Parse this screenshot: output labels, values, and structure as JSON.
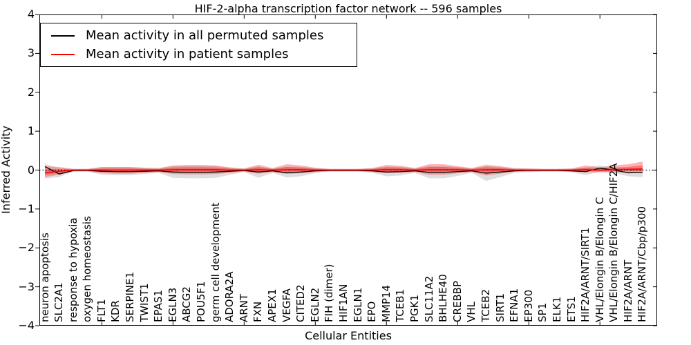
{
  "title": "HIF-2-alpha transcription factor network -- 596 samples",
  "legend": {
    "items": [
      {
        "label": "Mean activity in all permuted samples",
        "color": "#000000"
      },
      {
        "label": "Mean activity in patient samples",
        "color": "#ff0000"
      }
    ]
  },
  "axes": {
    "x_label": "Cellular Entities",
    "y_label": "Inferred Activity",
    "y_ticks": [
      "4",
      "3",
      "2",
      "1",
      "0",
      "−1",
      "−2",
      "−3",
      "−4"
    ],
    "y_tick_values": [
      4,
      3,
      2,
      1,
      0,
      -1,
      -2,
      -3,
      -4
    ],
    "y_min": -4,
    "y_max": 4,
    "x_major_tick_indices": [
      4,
      9,
      14,
      19,
      24,
      29,
      34,
      39
    ]
  },
  "colors": {
    "permuted_line": "#000000",
    "patient_line": "#ff0000",
    "permuted_band": "rgba(0,0,0,0.13)",
    "patient_band_outer": "rgba(255,40,40,0.35)",
    "patient_band_inner": "rgba(230,30,30,0.38)",
    "zero_line": "#000000"
  },
  "chart_data": {
    "type": "line",
    "title": "HIF-2-alpha transcription factor network -- 596 samples",
    "xlabel": "Cellular Entities",
    "ylabel": "Inferred Activity",
    "ylim": [
      -4,
      4
    ],
    "grid": false,
    "legend_position": "upper left",
    "zero_reference_line": "dotted black at y=0",
    "categories": [
      "neuron apoptosis",
      "SLC2A1",
      "response to hypoxia",
      "oxygen homeostasis",
      "FLT1",
      "KDR",
      "SERPINE1",
      "TWIST1",
      "EPAS1",
      "EGLN3",
      "ABCG2",
      "POU5F1",
      "germ cell development",
      "ADORA2A",
      "ARNT",
      "FXN",
      "APEX1",
      "VEGFA",
      "CITED2",
      "EGLN2",
      "FIH (dimer)",
      "HIF1AN",
      "EGLN1",
      "EPO",
      "MMP14",
      "TCEB1",
      "PGK1",
      "SLC11A2",
      "BHLHE40",
      "CREBBP",
      "VHL",
      "TCEB2",
      "SIRT1",
      "EFNA1",
      "EP300",
      "SP1",
      "ELK1",
      "ETS1",
      "HIF2A/ARNT/SIRT1",
      "VHL/Elongin B/Elongin C",
      "VHL/Elongin B/Elongin C/HIF2A",
      "HIF2A/ARNT",
      "HIF2A/ARNT/Cbp/p300"
    ],
    "series": [
      {
        "name": "Mean activity in all permuted samples",
        "values": [
          0.09,
          -0.1,
          -0.01,
          -0.01,
          -0.03,
          -0.04,
          -0.04,
          -0.03,
          -0.02,
          -0.05,
          -0.06,
          -0.06,
          -0.05,
          -0.03,
          -0.01,
          -0.05,
          -0.02,
          -0.07,
          -0.05,
          -0.02,
          -0.01,
          -0.01,
          -0.01,
          -0.02,
          -0.05,
          -0.04,
          -0.02,
          -0.06,
          -0.06,
          -0.04,
          -0.02,
          -0.08,
          -0.05,
          -0.02,
          -0.01,
          -0.01,
          -0.01,
          -0.02,
          -0.04,
          0.05,
          0.0,
          -0.07,
          -0.06
        ],
        "band_hi": [
          0.16,
          0.05,
          0.03,
          0.03,
          0.08,
          0.08,
          0.08,
          0.06,
          0.05,
          0.1,
          0.11,
          0.11,
          0.1,
          0.06,
          0.04,
          0.09,
          0.04,
          0.09,
          0.08,
          0.05,
          0.03,
          0.03,
          0.03,
          0.05,
          0.09,
          0.08,
          0.05,
          0.1,
          0.1,
          0.08,
          0.05,
          0.1,
          0.08,
          0.04,
          0.04,
          0.03,
          0.03,
          0.04,
          0.06,
          0.12,
          0.06,
          0.04,
          0.04
        ],
        "band_lo": [
          -0.22,
          -0.18,
          -0.04,
          -0.04,
          -0.12,
          -0.13,
          -0.13,
          -0.1,
          -0.07,
          -0.2,
          -0.21,
          -0.21,
          -0.2,
          -0.12,
          -0.05,
          -0.2,
          -0.07,
          -0.19,
          -0.16,
          -0.08,
          -0.04,
          -0.04,
          -0.04,
          -0.07,
          -0.16,
          -0.14,
          -0.07,
          -0.21,
          -0.21,
          -0.15,
          -0.07,
          -0.28,
          -0.18,
          -0.07,
          -0.05,
          -0.04,
          -0.04,
          -0.06,
          -0.13,
          -0.04,
          -0.08,
          -0.16,
          -0.18
        ]
      },
      {
        "name": "Mean activity in patient samples",
        "values": [
          -0.07,
          -0.03,
          0.0,
          0.0,
          0.0,
          0.0,
          0.0,
          0.0,
          0.0,
          0.01,
          0.01,
          0.01,
          0.01,
          0.0,
          0.0,
          0.01,
          0.0,
          0.01,
          0.01,
          0.0,
          0.0,
          0.0,
          0.0,
          0.0,
          0.01,
          0.01,
          0.0,
          0.01,
          0.01,
          0.01,
          0.0,
          0.01,
          0.01,
          0.0,
          0.0,
          0.0,
          0.0,
          0.0,
          0.01,
          0.0,
          0.01,
          0.02,
          0.03
        ],
        "band_hi": [
          0.1,
          0.08,
          0.03,
          0.03,
          0.08,
          0.08,
          0.08,
          0.06,
          0.05,
          0.12,
          0.13,
          0.13,
          0.12,
          0.07,
          0.04,
          0.14,
          0.05,
          0.15,
          0.12,
          0.06,
          0.03,
          0.03,
          0.03,
          0.05,
          0.13,
          0.11,
          0.05,
          0.15,
          0.15,
          0.1,
          0.05,
          0.14,
          0.1,
          0.05,
          0.04,
          0.03,
          0.03,
          0.04,
          0.12,
          0.07,
          0.12,
          0.15,
          0.22
        ],
        "band_lo": [
          -0.18,
          -0.12,
          -0.03,
          -0.03,
          -0.08,
          -0.09,
          -0.09,
          -0.07,
          -0.05,
          -0.1,
          -0.11,
          -0.11,
          -0.1,
          -0.07,
          -0.04,
          -0.09,
          -0.05,
          -0.1,
          -0.08,
          -0.05,
          -0.03,
          -0.03,
          -0.03,
          -0.05,
          -0.08,
          -0.07,
          -0.05,
          -0.12,
          -0.12,
          -0.08,
          -0.05,
          -0.14,
          -0.09,
          -0.04,
          -0.04,
          -0.03,
          -0.03,
          -0.04,
          -0.06,
          -0.06,
          -0.05,
          -0.06,
          -0.08
        ]
      }
    ]
  }
}
